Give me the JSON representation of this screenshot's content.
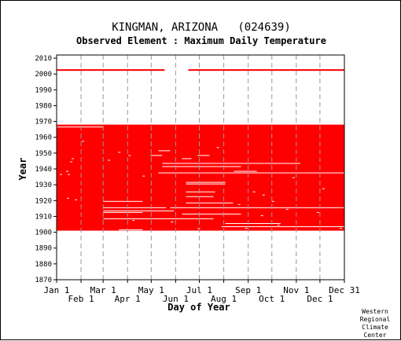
{
  "chart_data": {
    "type": "heatmap",
    "title": "KINGMAN, ARIZONA   (024639)",
    "subtitle": "Observed Element : Maximum Daily Temperature",
    "xlabel": "Day of Year",
    "ylabel": "Year",
    "xlim": [
      1,
      366
    ],
    "ylim": [
      1870,
      2012
    ],
    "grid": true,
    "x_ticks": [
      {
        "label": "Jan 1",
        "day": 1,
        "row": 1
      },
      {
        "label": "Feb 1",
        "day": 32,
        "row": 2
      },
      {
        "label": "Mar 1",
        "day": 60,
        "row": 1
      },
      {
        "label": "Apr 1",
        "day": 91,
        "row": 2
      },
      {
        "label": "May 1",
        "day": 121,
        "row": 1
      },
      {
        "label": "Jun 1",
        "day": 152,
        "row": 2
      },
      {
        "label": "Jul 1",
        "day": 182,
        "row": 1
      },
      {
        "label": "Aug 1",
        "day": 213,
        "row": 2
      },
      {
        "label": "Sep 1",
        "day": 244,
        "row": 1
      },
      {
        "label": "Oct 1",
        "day": 274,
        "row": 2
      },
      {
        "label": "Nov 1",
        "day": 305,
        "row": 1
      },
      {
        "label": "Dec 1",
        "day": 335,
        "row": 2
      },
      {
        "label": "Dec 31",
        "day": 366,
        "row": 1
      }
    ],
    "y_ticks": [
      1870,
      1880,
      1890,
      1900,
      1910,
      1920,
      1930,
      1940,
      1950,
      1960,
      1970,
      1980,
      1990,
      2000,
      2010
    ],
    "data_color": "#ff0000",
    "data_blocks": [
      {
        "year_start": 1901,
        "year_end": 1967,
        "day_start": 1,
        "day_end": 366
      }
    ],
    "data_segments": [
      {
        "year": 2002,
        "day_start": 1,
        "day_end": 138
      },
      {
        "year": 2002,
        "day_start": 168,
        "day_end": 366
      }
    ],
    "missing_segments": [
      {
        "year": 1966,
        "day_start": 1,
        "day_end": 60
      },
      {
        "year": 1951,
        "day_start": 130,
        "day_end": 145
      },
      {
        "year": 1948,
        "day_start": 120,
        "day_end": 135
      },
      {
        "year": 1948,
        "day_start": 180,
        "day_end": 195
      },
      {
        "year": 1946,
        "day_start": 160,
        "day_end": 172
      },
      {
        "year": 1943,
        "day_start": 135,
        "day_end": 310
      },
      {
        "year": 1941,
        "day_start": 135,
        "day_end": 235
      },
      {
        "year": 1938,
        "day_start": 226,
        "day_end": 255
      },
      {
        "year": 1937,
        "day_start": 130,
        "day_end": 366
      },
      {
        "year": 1931,
        "day_start": 165,
        "day_end": 215
      },
      {
        "year": 1930,
        "day_start": 165,
        "day_end": 215
      },
      {
        "year": 1925,
        "day_start": 165,
        "day_end": 202
      },
      {
        "year": 1922,
        "day_start": 165,
        "day_end": 200
      },
      {
        "year": 1919,
        "day_start": 60,
        "day_end": 110
      },
      {
        "year": 1918,
        "day_start": 165,
        "day_end": 225
      },
      {
        "year": 1915,
        "day_start": 60,
        "day_end": 140
      },
      {
        "year": 1915,
        "day_start": 145,
        "day_end": 366
      },
      {
        "year": 1913,
        "day_start": 60,
        "day_end": 150
      },
      {
        "year": 1912,
        "day_start": 60,
        "day_end": 110
      },
      {
        "year": 1911,
        "day_start": 160,
        "day_end": 235
      },
      {
        "year": 1908,
        "day_start": 60,
        "day_end": 200
      },
      {
        "year": 1905,
        "day_start": 215,
        "day_end": 285
      },
      {
        "year": 1903,
        "day_start": 210,
        "day_end": 366
      },
      {
        "year": 1901,
        "day_start": 80,
        "day_end": 110
      }
    ],
    "missing_specks": [
      {
        "year": 1957,
        "day": 33
      },
      {
        "year": 1953,
        "day": 204
      },
      {
        "year": 1950,
        "day": 79
      },
      {
        "year": 1948,
        "day": 92
      },
      {
        "year": 1946,
        "day": 20
      },
      {
        "year": 1945,
        "day": 66
      },
      {
        "year": 1944,
        "day": 18
      },
      {
        "year": 1938,
        "day": 13
      },
      {
        "year": 1936,
        "day": 5
      },
      {
        "year": 1936,
        "day": 15
      },
      {
        "year": 1935,
        "day": 110
      },
      {
        "year": 1934,
        "day": 300
      },
      {
        "year": 1927,
        "day": 338
      },
      {
        "year": 1925,
        "day": 250
      },
      {
        "year": 1923,
        "day": 262
      },
      {
        "year": 1921,
        "day": 14
      },
      {
        "year": 1920,
        "day": 24
      },
      {
        "year": 1919,
        "day": 274
      },
      {
        "year": 1917,
        "day": 231
      },
      {
        "year": 1914,
        "day": 292
      },
      {
        "year": 1912,
        "day": 331
      },
      {
        "year": 1910,
        "day": 260
      },
      {
        "year": 1907,
        "day": 97
      },
      {
        "year": 1906,
        "day": 146
      },
      {
        "year": 1904,
        "day": 281
      },
      {
        "year": 1902,
        "day": 180
      },
      {
        "year": 1902,
        "day": 240
      },
      {
        "year": 1902,
        "day": 360
      }
    ],
    "credit": [
      "Western",
      "Regional",
      "Climate",
      "Center"
    ]
  }
}
